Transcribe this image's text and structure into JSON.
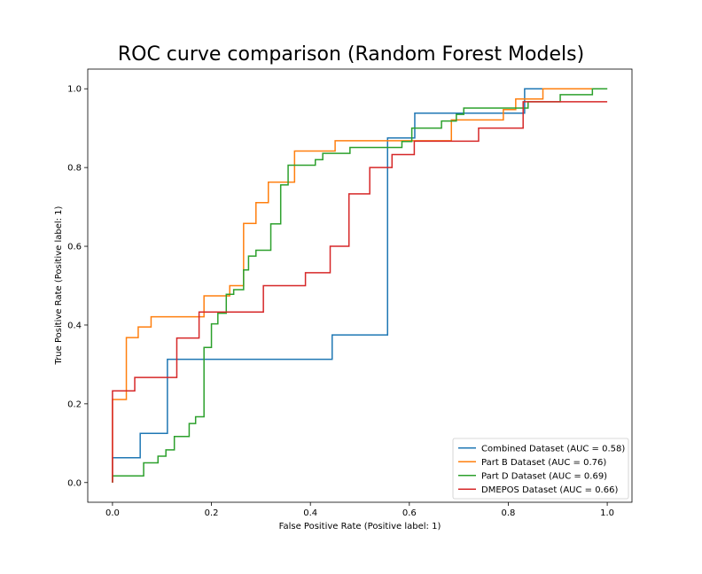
{
  "chart_data": {
    "type": "line",
    "title": "ROC curve comparison (Random Forest Models)",
    "xlabel": "False Positive Rate (Positive label: 1)",
    "ylabel": "True Positive Rate (Positive label: 1)",
    "xlim": [
      -0.05,
      1.05
    ],
    "ylim": [
      -0.05,
      1.05
    ],
    "xticks": [
      "0.0",
      "0.2",
      "0.4",
      "0.6",
      "0.8",
      "1.0"
    ],
    "yticks": [
      "0.0",
      "0.2",
      "0.4",
      "0.6",
      "0.8",
      "1.0"
    ],
    "grid": false,
    "legend_position": "lower-right",
    "series": [
      {
        "name": "Combined Dataset (AUC = 0.58)",
        "color": "#1f77b4",
        "x": [
          0,
          0,
          0.056,
          0.056,
          0.111,
          0.111,
          0.444,
          0.444,
          0.556,
          0.556,
          0.611,
          0.611,
          0.833,
          0.833,
          1.0
        ],
        "y": [
          0,
          0.063,
          0.063,
          0.125,
          0.125,
          0.313,
          0.313,
          0.375,
          0.375,
          0.875,
          0.875,
          0.938,
          0.938,
          1.0,
          1.0
        ]
      },
      {
        "name": "Part B Dataset (AUC = 0.76)",
        "color": "#ff7f0e",
        "x": [
          0,
          0,
          0.028,
          0.028,
          0.052,
          0.052,
          0.078,
          0.078,
          0.185,
          0.185,
          0.237,
          0.237,
          0.265,
          0.265,
          0.29,
          0.29,
          0.315,
          0.315,
          0.368,
          0.368,
          0.45,
          0.45,
          0.685,
          0.685,
          0.79,
          0.79,
          0.815,
          0.815,
          0.87,
          0.87,
          1.0
        ],
        "y": [
          0,
          0.211,
          0.211,
          0.368,
          0.368,
          0.395,
          0.395,
          0.421,
          0.421,
          0.474,
          0.474,
          0.5,
          0.5,
          0.658,
          0.658,
          0.711,
          0.711,
          0.763,
          0.763,
          0.842,
          0.842,
          0.868,
          0.868,
          0.921,
          0.921,
          0.947,
          0.947,
          0.974,
          0.974,
          1.0,
          1.0
        ]
      },
      {
        "name": "Part D Dataset (AUC = 0.69)",
        "color": "#2ca02c",
        "x": [
          0,
          0,
          0.063,
          0.063,
          0.092,
          0.092,
          0.108,
          0.108,
          0.125,
          0.125,
          0.155,
          0.155,
          0.168,
          0.168,
          0.185,
          0.185,
          0.2,
          0.2,
          0.213,
          0.213,
          0.23,
          0.23,
          0.245,
          0.245,
          0.265,
          0.265,
          0.275,
          0.275,
          0.29,
          0.29,
          0.32,
          0.32,
          0.34,
          0.34,
          0.355,
          0.355,
          0.41,
          0.41,
          0.425,
          0.425,
          0.48,
          0.48,
          0.585,
          0.585,
          0.605,
          0.605,
          0.665,
          0.665,
          0.695,
          0.695,
          0.71,
          0.71,
          0.84,
          0.84,
          0.905,
          0.905,
          0.97,
          0.97,
          1.0
        ],
        "y": [
          0,
          0.017,
          0.017,
          0.05,
          0.05,
          0.067,
          0.067,
          0.083,
          0.083,
          0.117,
          0.117,
          0.15,
          0.15,
          0.167,
          0.167,
          0.343,
          0.343,
          0.403,
          0.403,
          0.43,
          0.43,
          0.478,
          0.478,
          0.49,
          0.49,
          0.54,
          0.54,
          0.575,
          0.575,
          0.59,
          0.59,
          0.657,
          0.657,
          0.756,
          0.756,
          0.806,
          0.806,
          0.82,
          0.82,
          0.836,
          0.836,
          0.851,
          0.851,
          0.866,
          0.866,
          0.9,
          0.9,
          0.918,
          0.918,
          0.935,
          0.935,
          0.951,
          0.951,
          0.967,
          0.967,
          0.985,
          0.985,
          1.0,
          1.0
        ]
      },
      {
        "name": "DMEPOS Dataset (AUC = 0.66)",
        "color": "#d62728",
        "x": [
          0,
          0,
          0.045,
          0.045,
          0.13,
          0.13,
          0.175,
          0.175,
          0.305,
          0.305,
          0.39,
          0.39,
          0.44,
          0.44,
          0.478,
          0.478,
          0.52,
          0.52,
          0.565,
          0.565,
          0.61,
          0.61,
          0.74,
          0.74,
          0.83,
          0.83,
          1.0
        ],
        "y": [
          0,
          0.233,
          0.233,
          0.267,
          0.267,
          0.367,
          0.367,
          0.433,
          0.433,
          0.5,
          0.5,
          0.533,
          0.533,
          0.6,
          0.6,
          0.733,
          0.733,
          0.8,
          0.8,
          0.833,
          0.833,
          0.867,
          0.867,
          0.9,
          0.9,
          0.967,
          0.967
        ]
      }
    ]
  }
}
